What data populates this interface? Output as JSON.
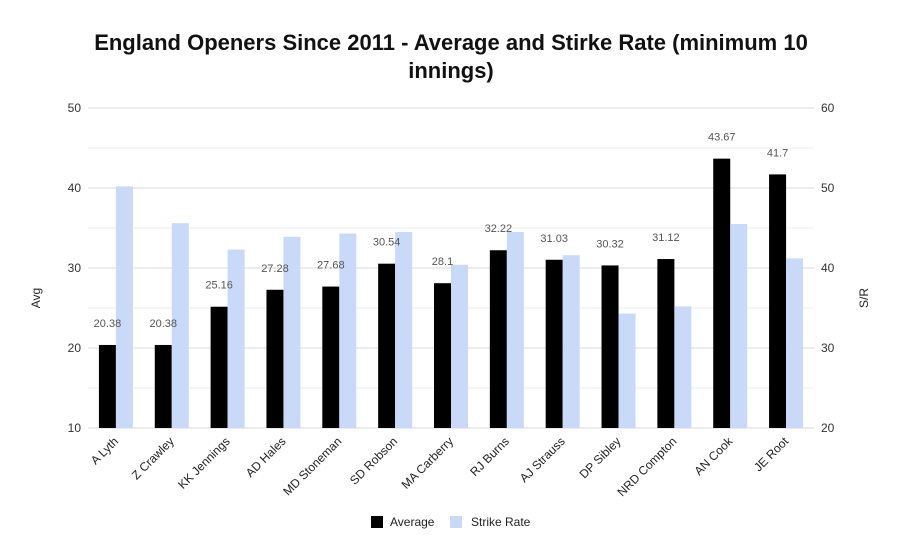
{
  "chart_data": {
    "type": "bar",
    "title_line1": "England Openers Since 2011 - Average and Stirke Rate (minimum 10",
    "title_line2": "innings)",
    "ylabel_left": "Avg",
    "ylabel_right": "S/R",
    "ylim_left": [
      10,
      50
    ],
    "ylim_right": [
      20,
      60
    ],
    "yticks_left": [
      "10",
      "20",
      "30",
      "40",
      "50"
    ],
    "yticks_right": [
      "20",
      "30",
      "40",
      "50",
      "60"
    ],
    "categories": [
      "A Lyth",
      "Z Crawley",
      "KK Jennings",
      "AD Hales",
      "MD Stoneman",
      "SD Robson",
      "MA Carberry",
      "RJ Burns",
      "AJ Strauss",
      "DP Sibley",
      "NRD Compton",
      "AN Cook",
      "JE Root"
    ],
    "series": [
      {
        "name": "Average",
        "axis": "left",
        "color": "#000000",
        "values": [
          20.38,
          20.38,
          25.16,
          27.28,
          27.68,
          30.54,
          28.1,
          32.22,
          31.03,
          30.32,
          31.12,
          43.67,
          41.7
        ],
        "data_labels": [
          "20.38",
          "20.38",
          "25.16",
          "27.28",
          "27.68",
          "30.54",
          "28.1",
          "32.22",
          "31.03",
          "30.32",
          "31.12",
          "43.67",
          "41.7"
        ]
      },
      {
        "name": "Strike Rate",
        "axis": "right",
        "color": "#c9daf8",
        "values": [
          50.2,
          45.6,
          42.3,
          43.9,
          44.3,
          44.5,
          40.4,
          44.5,
          41.6,
          34.3,
          35.2,
          45.5,
          41.2
        ]
      }
    ],
    "grid": true,
    "legend": "bottom"
  }
}
